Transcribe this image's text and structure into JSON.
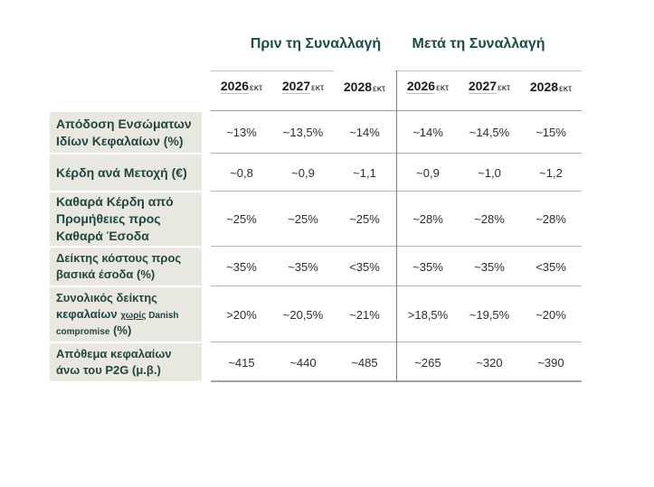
{
  "groups": {
    "before_title": "Πριν τη Συναλλαγή",
    "after_title": "Μετά τη Συναλλαγή"
  },
  "years": [
    {
      "label": "2026",
      "suffix": "εκτ"
    },
    {
      "label": "2027",
      "suffix": "εκτ"
    },
    {
      "label": "2028",
      "suffix": "εκτ"
    }
  ],
  "table": {
    "rows": [
      {
        "label": "Απόδοση Ενσώματων Ιδίων Κεφαλαίων (%)",
        "before": [
          "~13%",
          "~13,5%",
          "~14%"
        ],
        "after": [
          "~14%",
          "~14,5%",
          "~15%"
        ]
      },
      {
        "label": "Κέρδη ανά Μετοχή (€)",
        "before": [
          "~0,8",
          "~0,9",
          "~1,1"
        ],
        "after": [
          "~0,9",
          "~1,0",
          "~1,2"
        ]
      },
      {
        "label": "Καθαρά Κέρδη από Προμήθειες προς Καθαρά Έσοδα",
        "before": [
          "~25%",
          "~25%",
          "~25%"
        ],
        "after": [
          "~28%",
          "~28%",
          "~28%"
        ]
      },
      {
        "label": "Δείκτης κόστους προς βασικά έσοδα (%)",
        "before": [
          "~35%",
          "~35%",
          "<35%"
        ],
        "after": [
          "~35%",
          "~35%",
          "<35%"
        ]
      },
      {
        "label_main": "Συνολικός δείκτης κεφαλαίων",
        "label_small_underlined": "χωρίς",
        "label_small": "Danish compromise",
        "label_suffix": "(%)",
        "before": [
          ">20%",
          "~20,5%",
          "~21%"
        ],
        "after": [
          ">18,5%",
          "~19,5%",
          "~20%"
        ]
      },
      {
        "label": "Απόθεμα κεφαλαίων άνω του P2G (μ.β.)",
        "before": [
          "~415",
          "~440",
          "~485"
        ],
        "after": [
          "~265",
          "~320",
          "~390"
        ]
      }
    ]
  },
  "colors": {
    "title_green": "#1d4b47",
    "label_green": "#20463f",
    "label_background": "#e9e8e0",
    "value_text": "#2e2e2e",
    "separator_line": "#b5b5b3",
    "group_divider": "#7f7f7f"
  }
}
